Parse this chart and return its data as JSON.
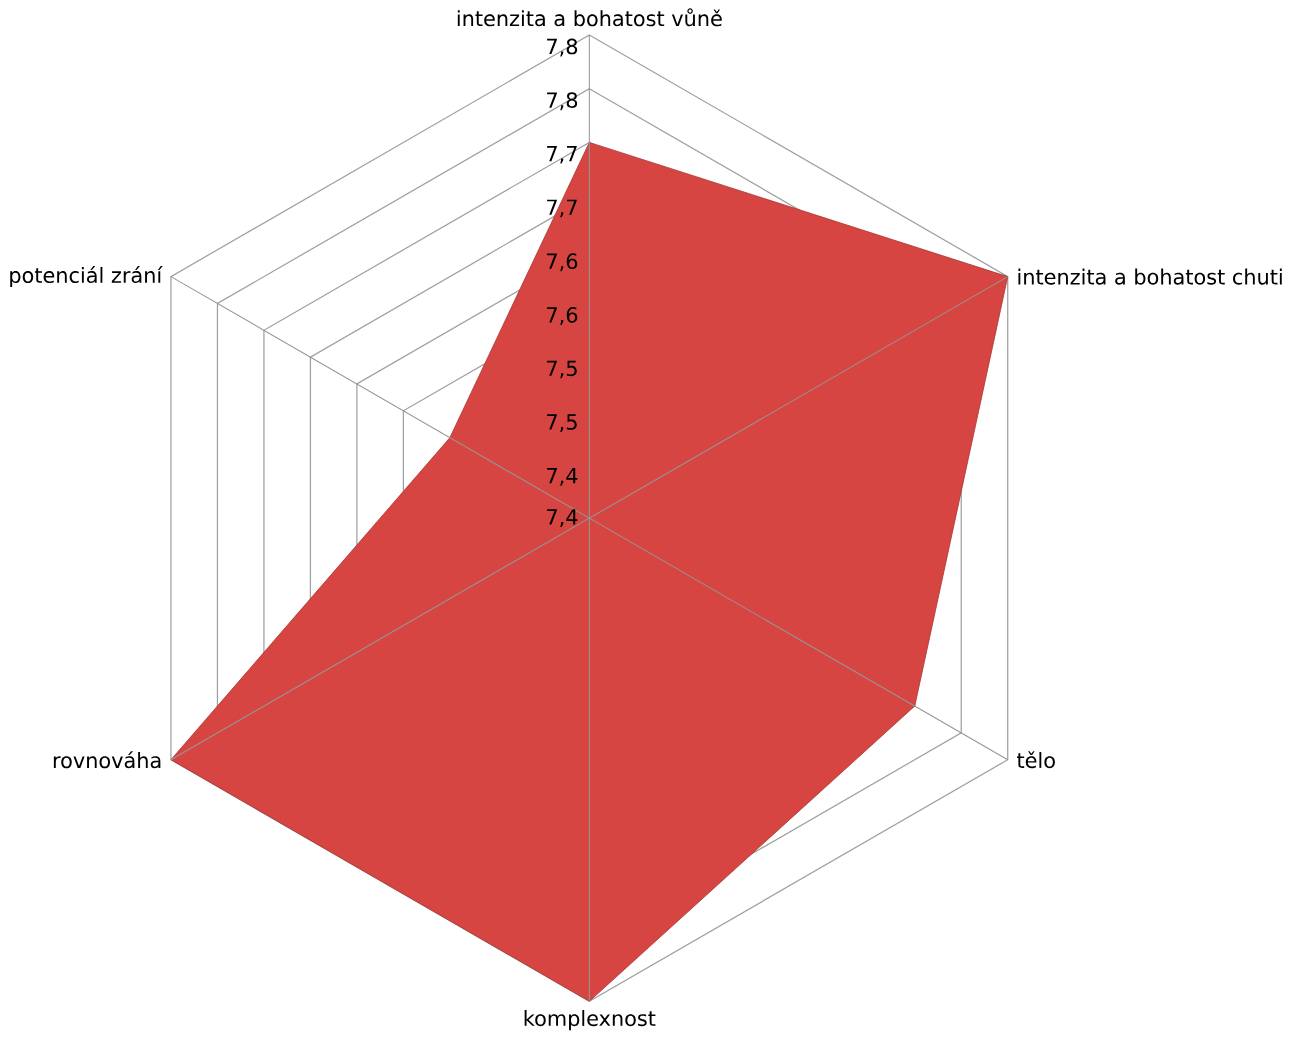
{
  "chart_data": {
    "type": "radar",
    "categories": [
      "intenzita a bohatost vůně",
      "intenzita a bohatost chuti",
      "tělo",
      "komplexnost",
      "rovnováha",
      "potenciál zrání"
    ],
    "series": [
      {
        "color": "#d64541",
        "values": [
          7.75,
          7.85,
          7.75,
          7.85,
          7.85,
          7.55
        ]
      }
    ],
    "ylim": [
      7.4,
      7.85
    ],
    "yticks": [
      {
        "value": 7.4,
        "label": "7,4"
      },
      {
        "value": 7.45,
        "label": "7,4"
      },
      {
        "value": 7.5,
        "label": "7,5"
      },
      {
        "value": 7.55,
        "label": "7,5"
      },
      {
        "value": 7.6,
        "label": "7,6"
      },
      {
        "value": 7.65,
        "label": "7,6"
      },
      {
        "value": 7.7,
        "label": "7,7"
      },
      {
        "value": 7.75,
        "label": "7,7"
      },
      {
        "value": 7.8,
        "label": "7,8"
      },
      {
        "value": 7.85,
        "label": "7,8"
      }
    ],
    "grid": true
  }
}
